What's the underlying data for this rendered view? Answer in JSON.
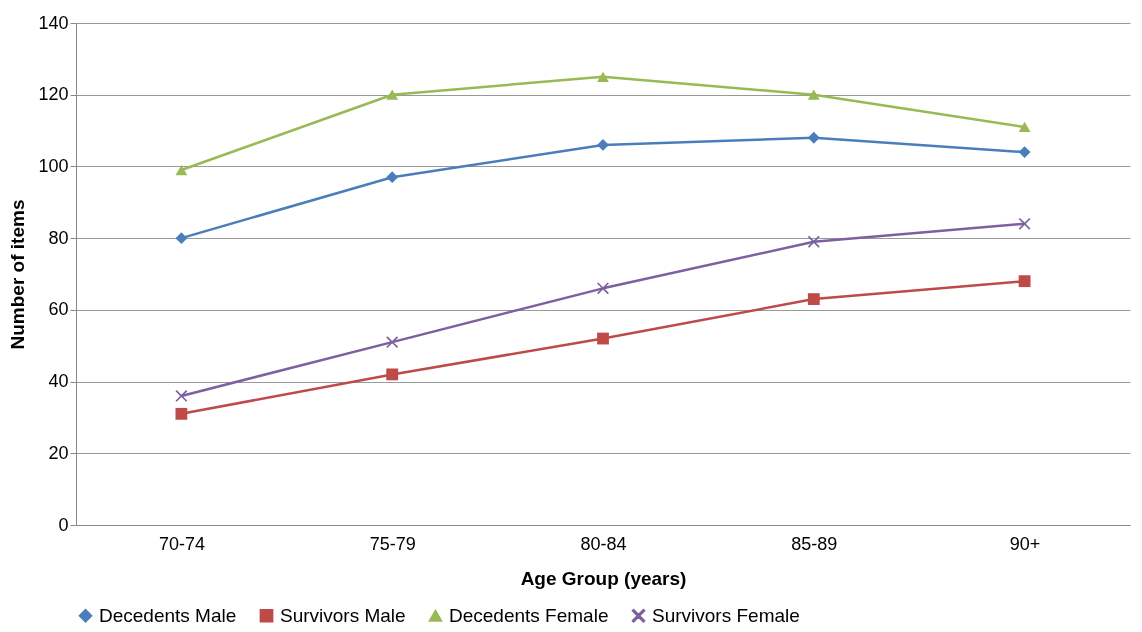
{
  "chart_data": {
    "type": "line",
    "xlabel": "Age Group (years)",
    "ylabel": "Number of items",
    "categories": [
      "70-74",
      "75-79",
      "80-84",
      "85-89",
      "90+"
    ],
    "ylim": [
      0,
      140
    ],
    "yticks": [
      0,
      20,
      40,
      60,
      80,
      100,
      120,
      140
    ],
    "grid": "y",
    "legend": "bottom",
    "line_style": "solid",
    "series": [
      {
        "name": "Decedents Male",
        "color": "#4a7ebb",
        "marker": "diamond",
        "values": [
          80,
          97,
          106,
          108,
          104
        ]
      },
      {
        "name": "Survivors Male",
        "color": "#be4b48",
        "marker": "square",
        "values": [
          31,
          42,
          52,
          63,
          68
        ]
      },
      {
        "name": "Decedents Female",
        "color": "#98b954",
        "marker": "triangle",
        "values": [
          99,
          120,
          125,
          120,
          111
        ]
      },
      {
        "name": "Survivors Female",
        "color": "#7d60a0",
        "marker": "cross",
        "values": [
          36,
          51,
          66,
          79,
          84
        ]
      }
    ]
  }
}
